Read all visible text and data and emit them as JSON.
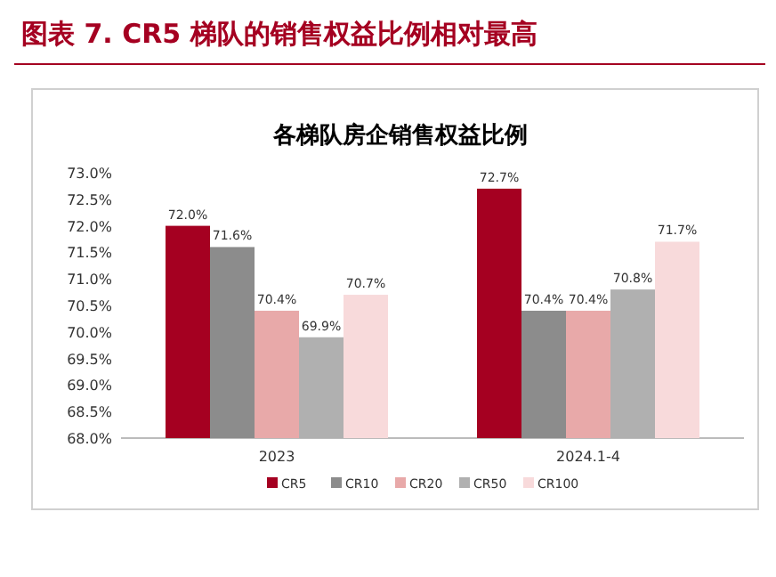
{
  "chart_data": {
    "type": "bar",
    "title": "图表 7. CR5 梯队的销售权益比例相对最高",
    "subtitle": "各梯队房企销售权益比例",
    "categories": [
      "2023",
      "2024.1-4"
    ],
    "series": [
      {
        "name": "CR5",
        "color": "#a50021",
        "values": [
          72.0,
          72.7
        ],
        "value_labels": [
          "72.0%",
          "72.7%"
        ]
      },
      {
        "name": "CR10",
        "color": "#8c8c8c",
        "values": [
          71.6,
          70.4
        ],
        "value_labels": [
          "71.6%",
          "70.4%"
        ]
      },
      {
        "name": "CR20",
        "color": "#e8a9a9",
        "values": [
          70.4,
          70.4
        ],
        "value_labels": [
          "70.4%",
          "70.4%"
        ]
      },
      {
        "name": "CR50",
        "color": "#b0b0b0",
        "values": [
          69.9,
          70.8
        ],
        "value_labels": [
          "69.9%",
          "70.8%"
        ]
      },
      {
        "name": "CR100",
        "color": "#f8dadb",
        "values": [
          70.7,
          71.7
        ],
        "value_labels": [
          "70.7%",
          "71.7%"
        ]
      }
    ],
    "ylim": [
      68,
      73
    ],
    "yticks": [
      {
        "value": 68,
        "label": "68.0%"
      },
      {
        "value": 68.5,
        "label": "68.5%"
      },
      {
        "value": 69,
        "label": "69.0%"
      },
      {
        "value": 69.5,
        "label": "69.5%"
      },
      {
        "value": 70,
        "label": "70.0%"
      },
      {
        "value": 70.5,
        "label": "70.5%"
      },
      {
        "value": 71,
        "label": "71.0%"
      },
      {
        "value": 71.5,
        "label": "71.5%"
      },
      {
        "value": 72,
        "label": "72.0%"
      },
      {
        "value": 72.5,
        "label": "72.5%"
      },
      {
        "value": 73,
        "label": "73.0%"
      }
    ],
    "grid": false,
    "legend": "bottom"
  }
}
